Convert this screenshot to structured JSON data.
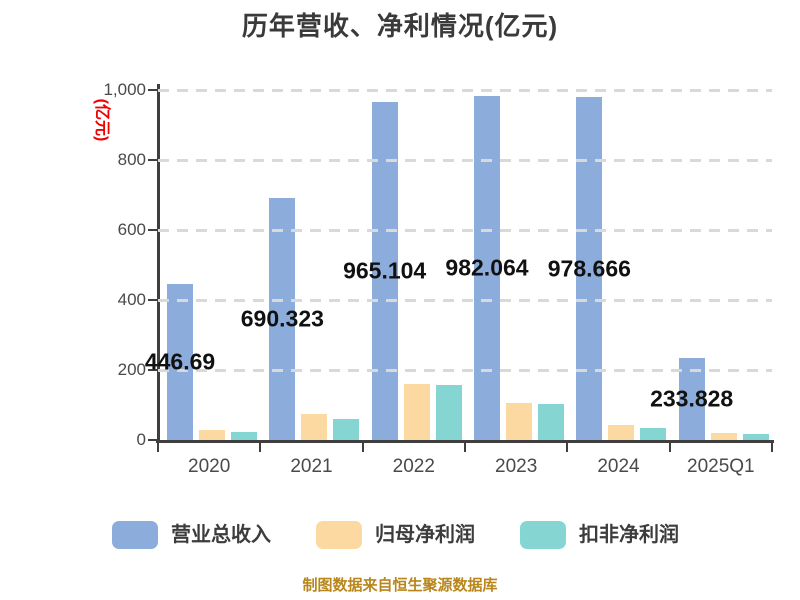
{
  "title": "历年营收、净利情况(亿元)",
  "y_axis": {
    "unit_label": "(亿元)",
    "ticks": [
      "0",
      "200",
      "400",
      "600",
      "800",
      "1,000"
    ],
    "tick_step": 200,
    "max": 1000
  },
  "source_note": "制图数据来自恒生聚源数据库",
  "colors": {
    "revenue_bar": "#8cacdc",
    "net_profit_bar": "#fcd9a0",
    "non_gaap_profit_bar": "#85d6d2",
    "axis": "#3f3f3f",
    "gridline": "#d9d9d9",
    "title_text": "#3a3a3a",
    "unit_label_red": "#ee0000",
    "source_text": "#b9861b",
    "bar_value_label": "#111111"
  },
  "chart_data": {
    "type": "bar",
    "title": "历年营收、净利情况(亿元)",
    "categories": [
      "2020",
      "2021",
      "2022",
      "2023",
      "2024",
      "2025Q1"
    ],
    "series": [
      {
        "name": "营业总收入",
        "color": "#8cacdc",
        "values": [
          446.69,
          690.323,
          965.104,
          982.064,
          978.666,
          233.828
        ],
        "labels": [
          "446.69",
          "690.323",
          "965.104",
          "982.064",
          "978.666",
          "233.828"
        ]
      },
      {
        "name": "归母净利润",
        "color": "#fcd9a0",
        "values": [
          30,
          75,
          160,
          107,
          43,
          19
        ],
        "labels": null
      },
      {
        "name": "扣非净利润",
        "color": "#85d6d2",
        "values": [
          22,
          60,
          157,
          104,
          35,
          16
        ],
        "labels": null
      }
    ],
    "xlabel": "",
    "ylabel": "(亿元)",
    "ylim": [
      0,
      1000
    ],
    "grid": "horizontal-dashed",
    "legend_position": "bottom"
  },
  "legend": {
    "items": [
      {
        "label": "营业总收入",
        "color": "#8cacdc"
      },
      {
        "label": "归母净利润",
        "color": "#fcd9a0"
      },
      {
        "label": "扣非净利润",
        "color": "#85d6d2"
      }
    ]
  }
}
